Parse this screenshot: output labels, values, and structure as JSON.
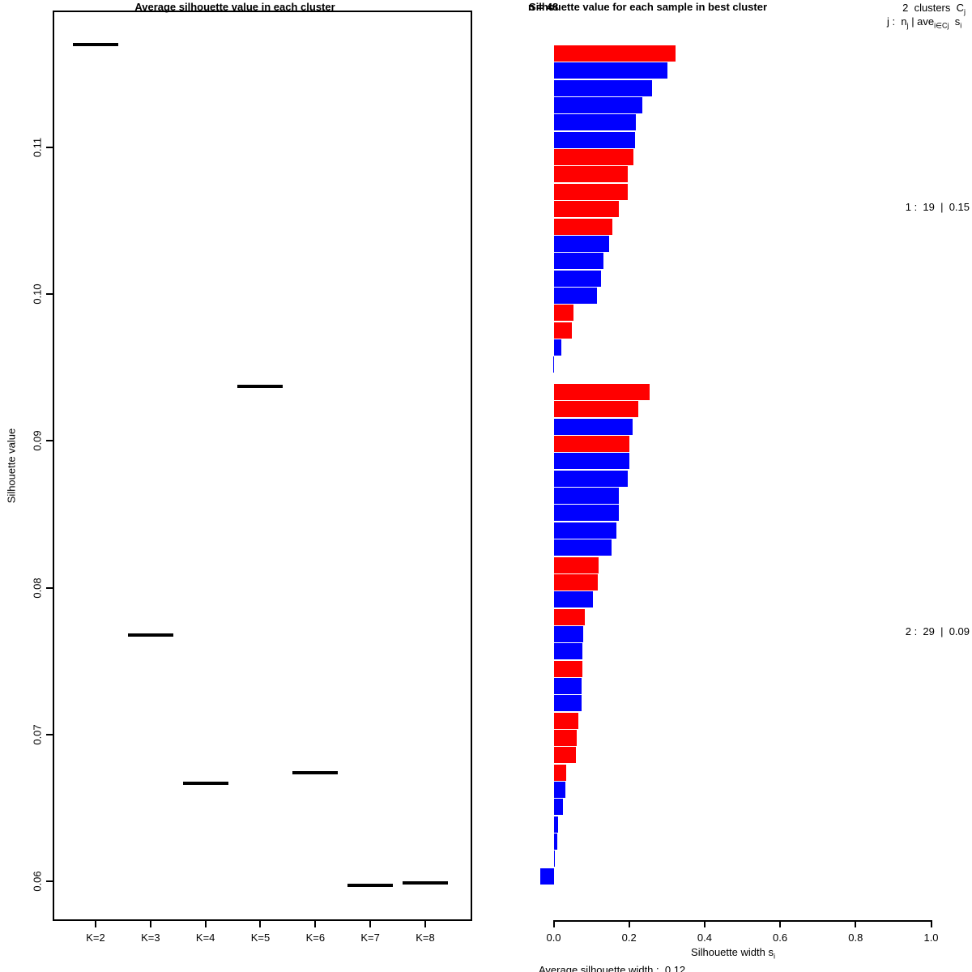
{
  "left": {
    "title": "Average silhouette value in each cluster",
    "ylabel": "Silhouette value",
    "y_ticks": [
      "0.06",
      "0.07",
      "0.08",
      "0.09",
      "0.10",
      "0.11"
    ],
    "x_ticks": [
      "K=2",
      "K=3",
      "K=4",
      "K=5",
      "K=6",
      "K=7",
      "K=8"
    ]
  },
  "right": {
    "title": "Silhouette value for each sample in best cluster",
    "n_label": "n = 48",
    "legend_line1": {
      "p1": "2  clusters  C",
      "s1": "j"
    },
    "legend_line2": {
      "p1": "j :  n",
      "s1": "j",
      "p2": " | ave",
      "s2": "i∈Cj",
      "p3": "  s",
      "s3": "i"
    },
    "cluster1_label": "1 :  19  |  0.15",
    "cluster2_label": "2 :  29  |  0.09",
    "x_ticks": [
      "0.0",
      "0.2",
      "0.4",
      "0.6",
      "0.8",
      "1.0"
    ],
    "xlabel_pre": "Silhouette width s",
    "xlabel_sub": "i",
    "footer": "Average silhouette width :  0.12",
    "palette": {
      "red": "#ff0000",
      "blue": "#0000ff"
    }
  },
  "chart_data": [
    {
      "type": "scatter",
      "marker": "horizontal-dash",
      "title": "Average silhouette value in each cluster",
      "xlabel": "",
      "ylabel": "Silhouette value",
      "categories": [
        "K=2",
        "K=3",
        "K=4",
        "K=5",
        "K=6",
        "K=7",
        "K=8"
      ],
      "values": [
        0.117,
        0.0768,
        0.0667,
        0.0937,
        0.0674,
        0.0597,
        0.0599
      ],
      "ylim": [
        0.0559,
        0.1193
      ],
      "y_tick_values": [
        0.06,
        0.07,
        0.08,
        0.09,
        0.1,
        0.11
      ],
      "grid": false
    },
    {
      "type": "bar",
      "orientation": "horizontal",
      "title": "Silhouette value for each sample in best cluster",
      "n": 48,
      "n_clusters": 2,
      "header_right": [
        "2 clusters Cj",
        "j : nj | ave i∈Cj si"
      ],
      "xlabel": "Silhouette width si",
      "xlim": [
        -0.05,
        1.0
      ],
      "x_tick_values": [
        0.0,
        0.2,
        0.4,
        0.6,
        0.8,
        1.0
      ],
      "average_silhouette_width": 0.12,
      "clusters": [
        {
          "j": 1,
          "n": 19,
          "avg": 0.15,
          "label": "1 :  19  |  0.15",
          "values": [
            0.322,
            0.3,
            0.26,
            0.234,
            0.217,
            0.215,
            0.21,
            0.196,
            0.195,
            0.172,
            0.155,
            0.145,
            0.131,
            0.124,
            0.114,
            0.052,
            0.047,
            0.02,
            -0.003
          ],
          "colors": [
            "red",
            "blue",
            "blue",
            "blue",
            "blue",
            "blue",
            "red",
            "red",
            "red",
            "red",
            "red",
            "blue",
            "blue",
            "blue",
            "blue",
            "red",
            "red",
            "blue",
            "blue"
          ]
        },
        {
          "j": 2,
          "n": 29,
          "avg": 0.09,
          "label": "2 :  29  |  0.09",
          "values": [
            0.253,
            0.223,
            0.208,
            0.2,
            0.199,
            0.195,
            0.172,
            0.171,
            0.165,
            0.152,
            0.118,
            0.115,
            0.102,
            0.082,
            0.077,
            0.076,
            0.075,
            0.074,
            0.074,
            0.064,
            0.06,
            0.058,
            0.033,
            0.029,
            0.024,
            0.01,
            0.009,
            0.002,
            -0.037
          ],
          "colors": [
            "red",
            "red",
            "blue",
            "red",
            "blue",
            "blue",
            "blue",
            "blue",
            "blue",
            "blue",
            "red",
            "red",
            "blue",
            "red",
            "blue",
            "blue",
            "red",
            "blue",
            "blue",
            "red",
            "red",
            "red",
            "red",
            "blue",
            "blue",
            "blue",
            "blue",
            "blue",
            "blue"
          ]
        }
      ]
    }
  ]
}
